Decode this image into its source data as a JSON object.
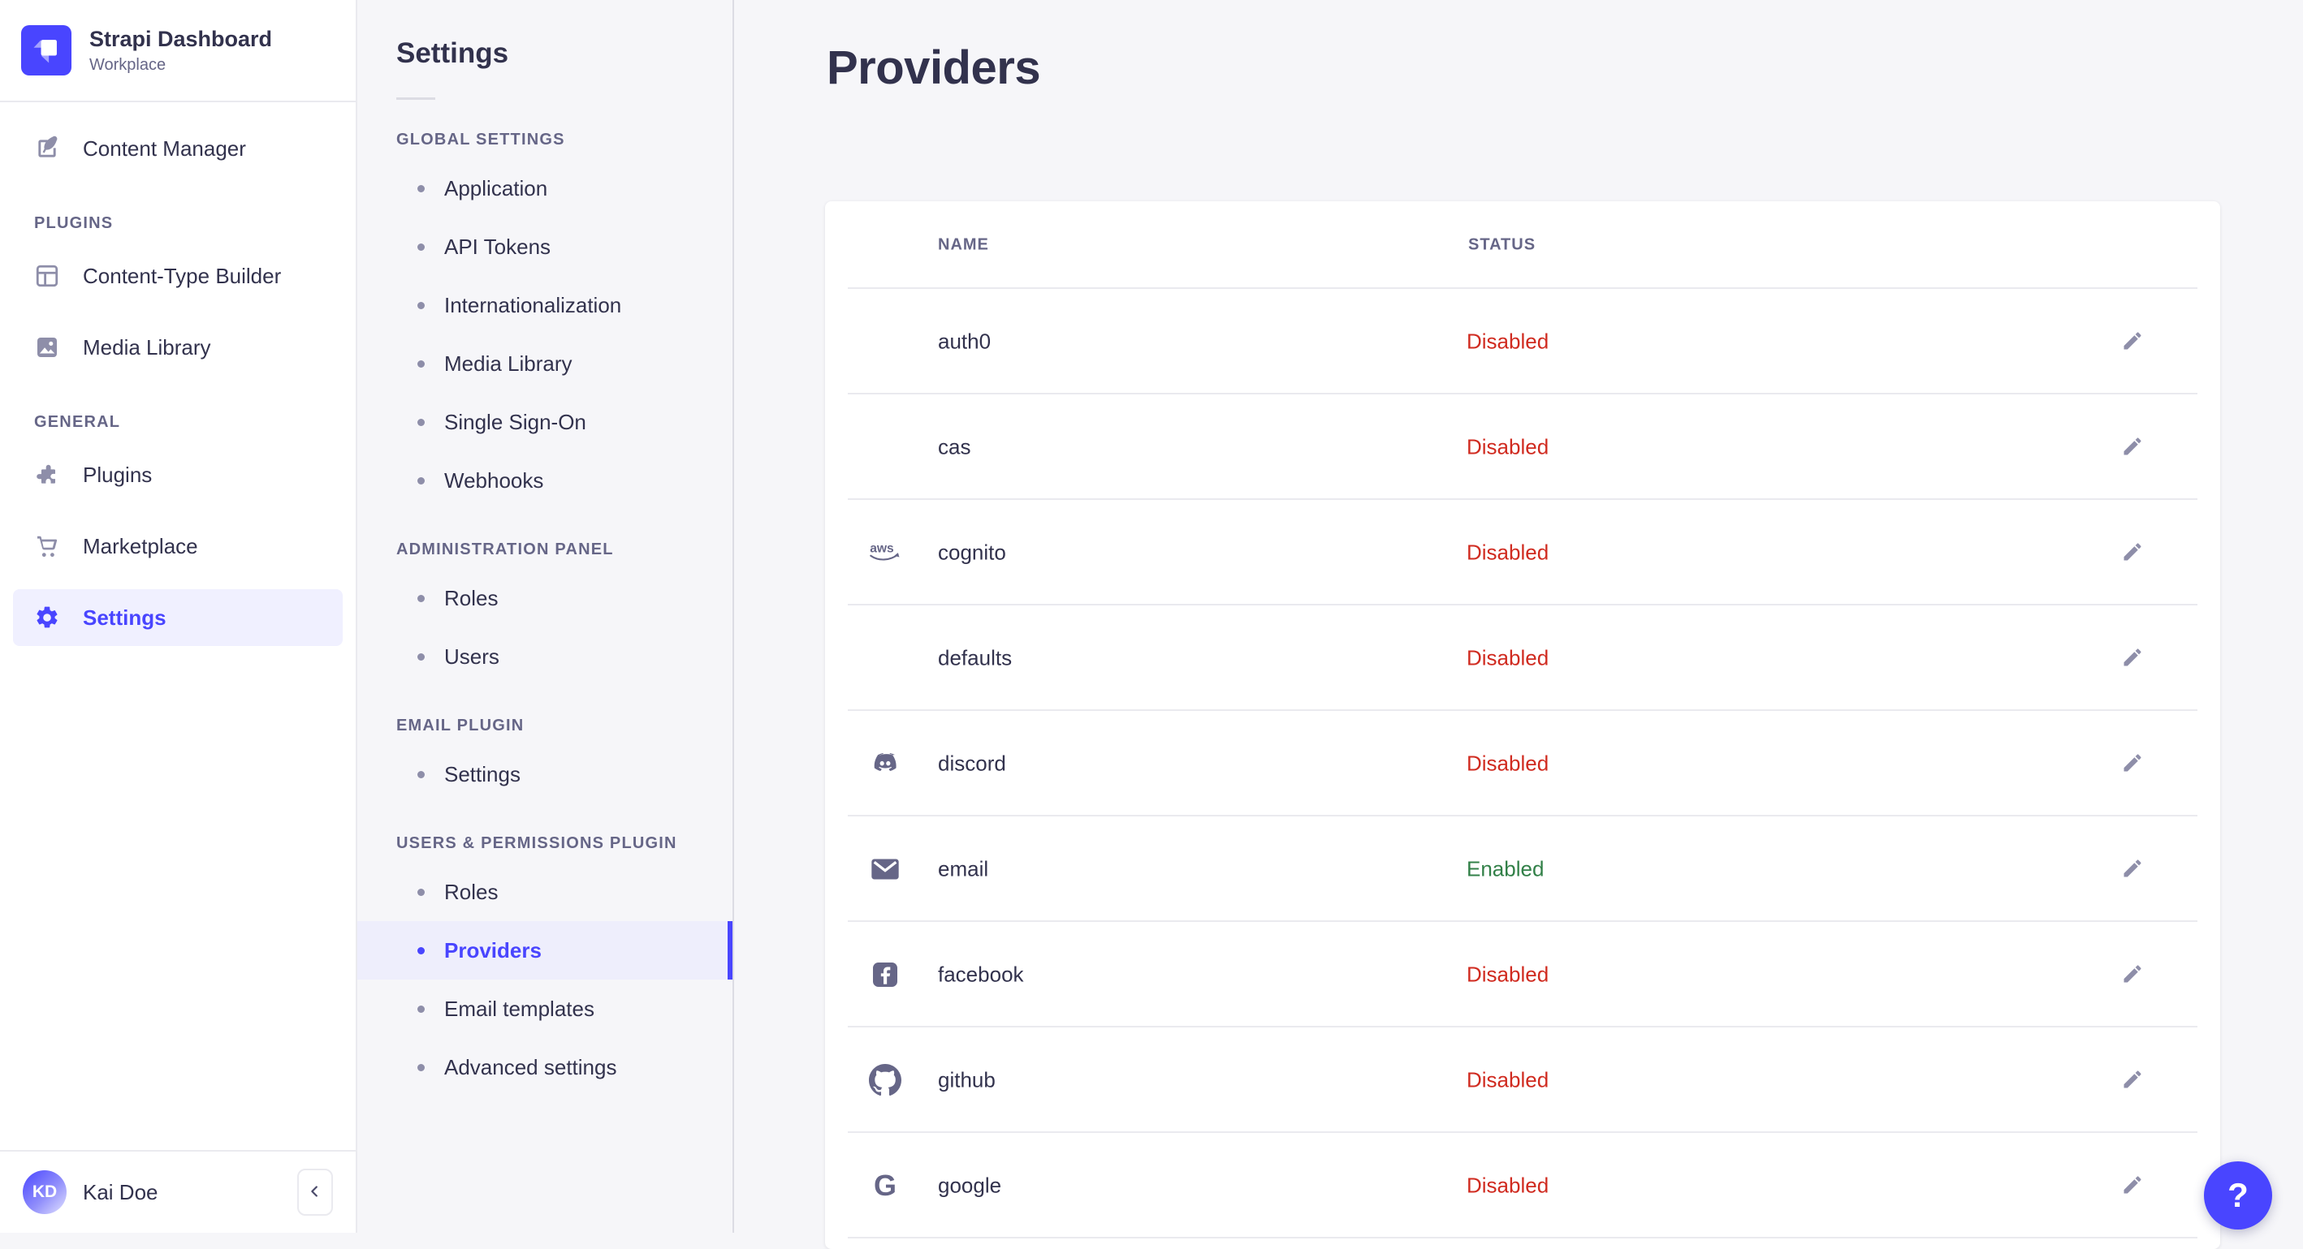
{
  "app": {
    "title": "Strapi Dashboard",
    "subtitle": "Workplace"
  },
  "sidebar": {
    "primary_items": [
      {
        "label": "Content Manager",
        "icon": "content-manager-icon",
        "active": false
      }
    ],
    "sections": [
      {
        "title": "PLUGINS",
        "items": [
          {
            "label": "Content-Type Builder",
            "icon": "content-type-builder-icon",
            "active": false
          },
          {
            "label": "Media Library",
            "icon": "media-library-icon",
            "active": false
          }
        ]
      },
      {
        "title": "GENERAL",
        "items": [
          {
            "label": "Plugins",
            "icon": "plugins-icon",
            "active": false
          },
          {
            "label": "Marketplace",
            "icon": "marketplace-icon",
            "active": false
          },
          {
            "label": "Settings",
            "icon": "settings-icon",
            "active": true
          }
        ]
      }
    ],
    "user": {
      "initials": "KD",
      "name": "Kai Doe"
    }
  },
  "subnav": {
    "title": "Settings",
    "sections": [
      {
        "title": "GLOBAL SETTINGS",
        "items": [
          {
            "label": "Application",
            "active": false
          },
          {
            "label": "API Tokens",
            "active": false
          },
          {
            "label": "Internationalization",
            "active": false
          },
          {
            "label": "Media Library",
            "active": false
          },
          {
            "label": "Single Sign-On",
            "active": false
          },
          {
            "label": "Webhooks",
            "active": false
          }
        ]
      },
      {
        "title": "ADMINISTRATION PANEL",
        "items": [
          {
            "label": "Roles",
            "active": false
          },
          {
            "label": "Users",
            "active": false
          }
        ]
      },
      {
        "title": "EMAIL PLUGIN",
        "items": [
          {
            "label": "Settings",
            "active": false
          }
        ]
      },
      {
        "title": "USERS & PERMISSIONS PLUGIN",
        "items": [
          {
            "label": "Roles",
            "active": false
          },
          {
            "label": "Providers",
            "active": true
          },
          {
            "label": "Email templates",
            "active": false
          },
          {
            "label": "Advanced settings",
            "active": false
          }
        ]
      }
    ]
  },
  "main": {
    "title": "Providers",
    "table": {
      "columns": [
        "NAME",
        "STATUS"
      ],
      "rows": [
        {
          "name": "auth0",
          "status": "Disabled",
          "icon": null
        },
        {
          "name": "cas",
          "status": "Disabled",
          "icon": null
        },
        {
          "name": "cognito",
          "status": "Disabled",
          "icon": "aws-icon"
        },
        {
          "name": "defaults",
          "status": "Disabled",
          "icon": null
        },
        {
          "name": "discord",
          "status": "Disabled",
          "icon": "discord-icon"
        },
        {
          "name": "email",
          "status": "Enabled",
          "icon": "email-icon"
        },
        {
          "name": "facebook",
          "status": "Disabled",
          "icon": "facebook-icon"
        },
        {
          "name": "github",
          "status": "Disabled",
          "icon": "github-icon"
        },
        {
          "name": "google",
          "status": "Disabled",
          "icon": "google-icon"
        }
      ]
    }
  },
  "help": {
    "label": "?"
  },
  "colors": {
    "primary": "#4945FF",
    "primary_light": "#EEEEFC",
    "danger": "#D02B20",
    "success": "#328048",
    "text": "#32324D",
    "text_muted": "#666687"
  }
}
